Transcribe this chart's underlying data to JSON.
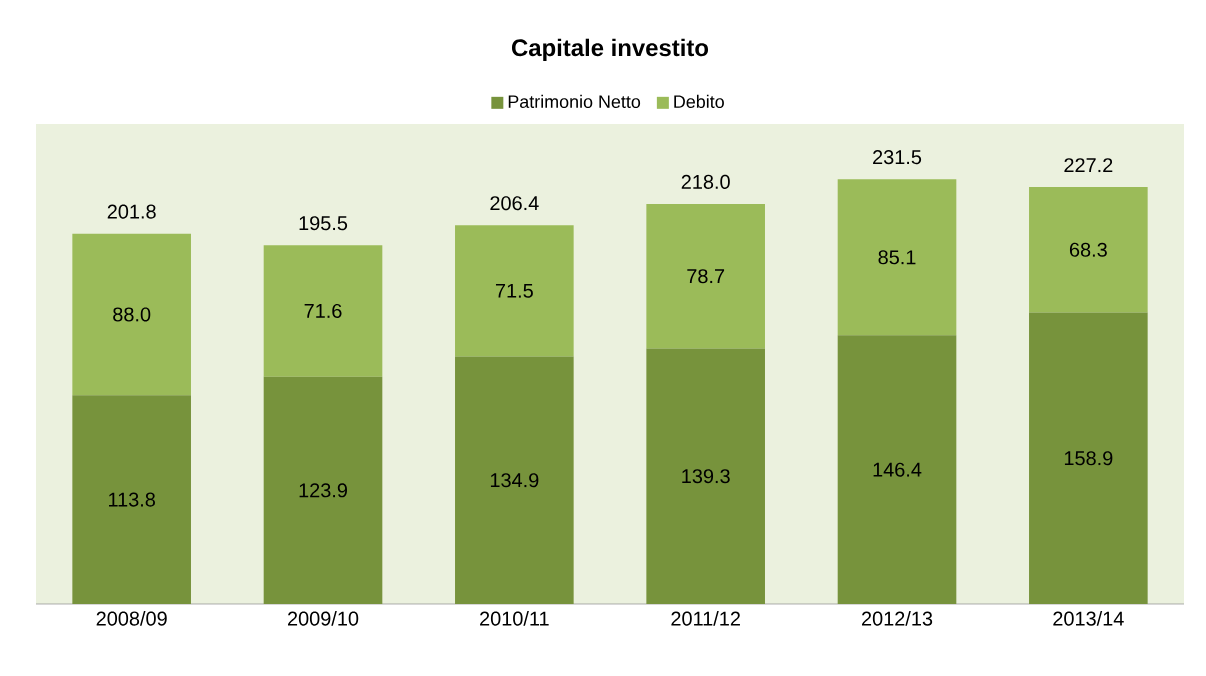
{
  "chart_data": {
    "type": "bar",
    "title": "Capitale investito",
    "stacked": true,
    "legend": "top",
    "categories": [
      "2008/09",
      "2009/10",
      "2010/11",
      "2011/12",
      "2012/13",
      "2013/14"
    ],
    "series": [
      {
        "name": "Patrimonio Netto",
        "color": "#77933c",
        "values": [
          113.8,
          123.9,
          134.9,
          139.3,
          146.4,
          158.9
        ],
        "value_labels": [
          "113.8",
          "123.9",
          "134.9",
          "139.3",
          "146.4",
          "158.9"
        ]
      },
      {
        "name": "Debito",
        "color": "#9bbb59",
        "values": [
          88.0,
          71.6,
          71.5,
          78.7,
          85.1,
          68.3
        ],
        "value_labels": [
          "88.0",
          "71.6",
          "71.5",
          "78.7",
          "85.1",
          "68.3"
        ]
      }
    ],
    "totals": [
      "201.8",
      "195.5",
      "206.4",
      "218.0",
      "231.5",
      "227.2"
    ]
  }
}
